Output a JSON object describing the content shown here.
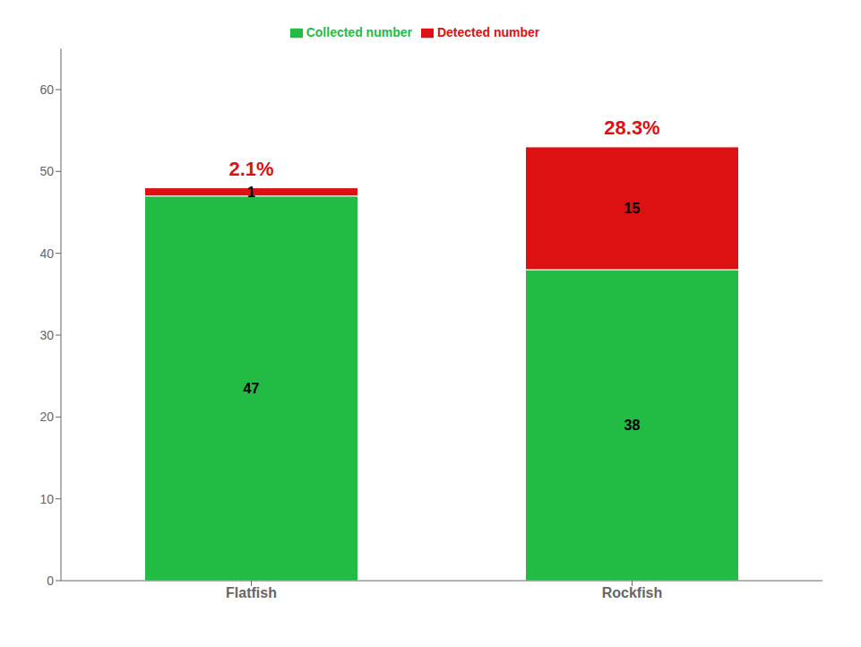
{
  "chart_data": {
    "type": "bar",
    "stacked": true,
    "data_labels": true,
    "legend": "top",
    "grid": false,
    "categories": [
      "Flatfish",
      "Rockfish"
    ],
    "series": [
      {
        "name": "Collected number",
        "color": "#22BB44",
        "values": [
          47,
          38
        ]
      },
      {
        "name": "Detected number",
        "color": "#DD1111",
        "values": [
          1,
          15
        ]
      }
    ],
    "annotations": [
      "2.1%",
      "28.3%"
    ],
    "ylim": [
      0,
      65
    ],
    "yticks": [
      0,
      10,
      20,
      30,
      40,
      50,
      60
    ]
  }
}
